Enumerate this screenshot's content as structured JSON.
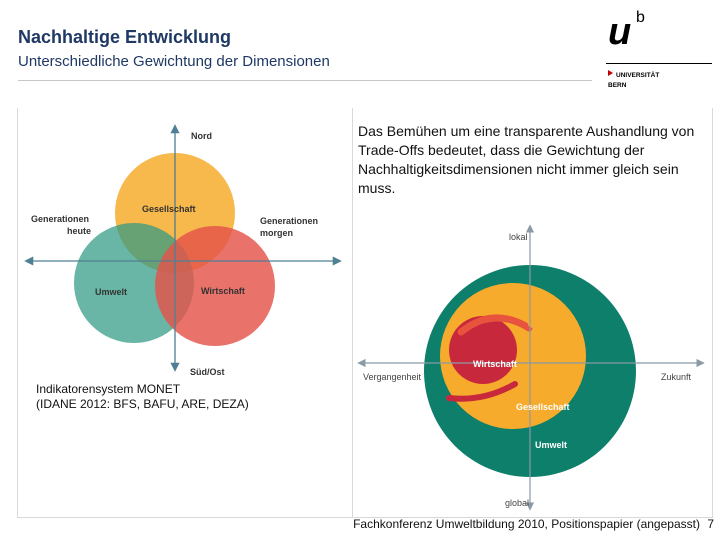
{
  "header": {
    "title": "Nachhaltige Entwicklung",
    "subtitle": "Unterschiedliche Gewichtung der Dimensionen"
  },
  "logo": {
    "mark": "u",
    "superscript": "b",
    "line1": "UNIVERSITÄT",
    "line2": "BERN"
  },
  "left_diagram": {
    "axis_top": "Nord",
    "axis_bottom": "Süd/Ost",
    "axis_left_line1": "Generationen",
    "axis_left_line2": "heute",
    "axis_right_line1": "Generationen",
    "axis_right_line2": "morgen",
    "circles": [
      {
        "label": "Gesellschaft",
        "color": "#f6ab2d"
      },
      {
        "label": "Umwelt",
        "color": "#2f9a84"
      },
      {
        "label": "Wirtschaft",
        "color": "#e4534a"
      }
    ],
    "caption_line1": "Indikatorensystem MONET",
    "caption_line2": "(IDANE 2012: BFS, BAFU, ARE, DEZA)"
  },
  "description": "Das Bemühen um eine transparente Aushandlung von Trade-Offs bedeutet, dass die Gewichtung der Nachhaltigkeitsdimensionen nicht immer gleich sein muss.",
  "right_diagram": {
    "axis_top": "lokal",
    "axis_bottom": "global",
    "axis_left": "Vergangenheit",
    "axis_right": "Zukunft",
    "inner": "Wirtschaft",
    "middle": "Gesellschaft",
    "outer": "Umwelt",
    "colors": {
      "outer": "#0d7f6b",
      "middle": "#f6ab2d",
      "inner": "#c8283c"
    }
  },
  "footer": {
    "source": "Fachkonferenz Umweltbildung 2010, Positionspapier (angepasst)",
    "page": "7"
  }
}
